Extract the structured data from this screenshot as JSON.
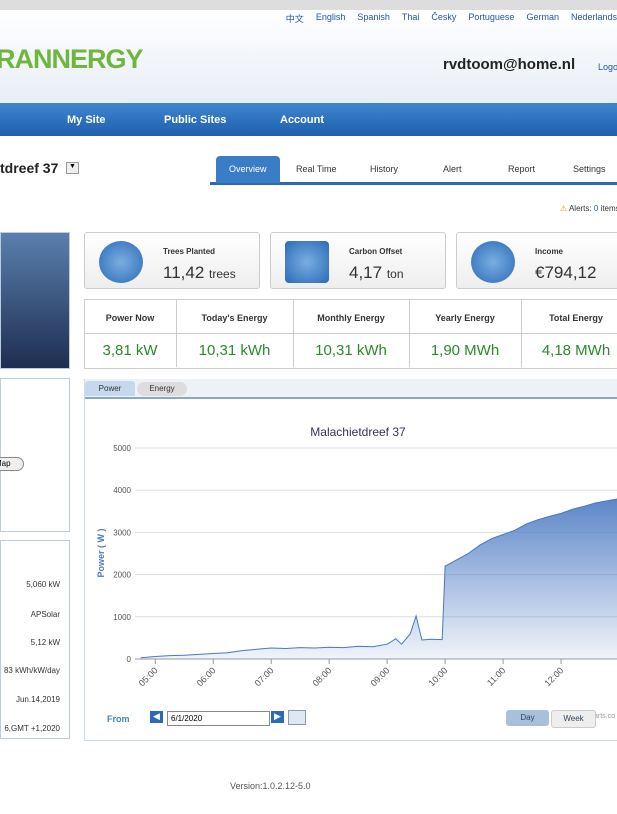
{
  "languages": [
    "中文",
    "English",
    "Spanish",
    "Thai",
    "Česky",
    "Portuguese",
    "German",
    "Nederlands"
  ],
  "header": {
    "logo": "RANNERGY",
    "user": "rvdtoom@home.nl",
    "logout": "Logout"
  },
  "nav": [
    "My Site",
    "Public Sites",
    "Account"
  ],
  "site_name": "tdreef 37",
  "tabs": [
    "Overview",
    "Real Time",
    "History",
    "Alert",
    "Report",
    "Settings"
  ],
  "alerts": {
    "label": "Alerts:",
    "count": "0",
    "unit": "items"
  },
  "environment": [
    {
      "label": "Trees Planted",
      "value": "11,42",
      "unit": "trees"
    },
    {
      "label": "Carbon Offset",
      "value": "4,17",
      "unit": "ton"
    },
    {
      "label": "Income",
      "value": "€794,12",
      "unit": ""
    }
  ],
  "energy": {
    "headers": [
      "Power Now",
      "Today's Energy",
      "Monthly Energy",
      "Yearly Energy",
      "Total Energy"
    ],
    "values": [
      "3,81 kW",
      "10,31 kWh",
      "10,31 kWh",
      "1,90 MWh",
      "4,18 MWh"
    ]
  },
  "left_panel": {
    "map_button": "Map",
    "info": [
      "5,060 kW",
      "APSolar",
      "5,12 kW",
      "83 kWh/kW/day",
      "Jun.14,2019",
      "6,GMT +1,2020"
    ]
  },
  "chart_tabs": [
    "Power",
    "Energy"
  ],
  "chart_data": {
    "type": "area",
    "title": "Malachietdreef 37",
    "y_label": "Power ( W )",
    "color": "#4a78c2",
    "x": [
      4.75,
      5,
      5.25,
      5.5,
      5.75,
      6,
      6.25,
      6.5,
      6.75,
      7,
      7.25,
      7.5,
      7.75,
      8,
      8.25,
      8.5,
      8.75,
      9,
      9.15,
      9.25,
      9.4,
      9.5,
      9.6,
      9.75,
      9.95,
      10,
      10.2,
      10.4,
      10.6,
      10.8,
      11,
      11.2,
      11.4,
      11.6,
      11.8,
      12,
      12.2,
      12.4,
      12.6,
      12.8,
      13
    ],
    "values": [
      30,
      60,
      80,
      90,
      110,
      130,
      150,
      200,
      230,
      260,
      250,
      270,
      260,
      280,
      270,
      300,
      290,
      350,
      480,
      350,
      600,
      1020,
      450,
      470,
      460,
      2200,
      2350,
      2500,
      2700,
      2850,
      2950,
      3050,
      3200,
      3300,
      3380,
      3450,
      3550,
      3620,
      3700,
      3750,
      3800
    ],
    "xlim": [
      4.65,
      13
    ],
    "ylim": [
      0,
      5000
    ],
    "yticks": [
      0,
      1000,
      2000,
      3000,
      4000,
      5000
    ],
    "xticks": [
      {
        "value": 5,
        "label": "05:00"
      },
      {
        "value": 6,
        "label": "06:00"
      },
      {
        "value": 7,
        "label": "07:00"
      },
      {
        "value": 8,
        "label": "08:00"
      },
      {
        "value": 9,
        "label": "09:00"
      },
      {
        "value": 10,
        "label": "10:00"
      },
      {
        "value": 11,
        "label": "11:00"
      },
      {
        "value": 12,
        "label": "12:00"
      }
    ],
    "grid": true,
    "credit": "arts.co"
  },
  "date_picker": {
    "label": "From",
    "date": "6/1/2020",
    "buttons": [
      "Day",
      "Week"
    ]
  },
  "version": "Version:1.0.2.12-5.0"
}
